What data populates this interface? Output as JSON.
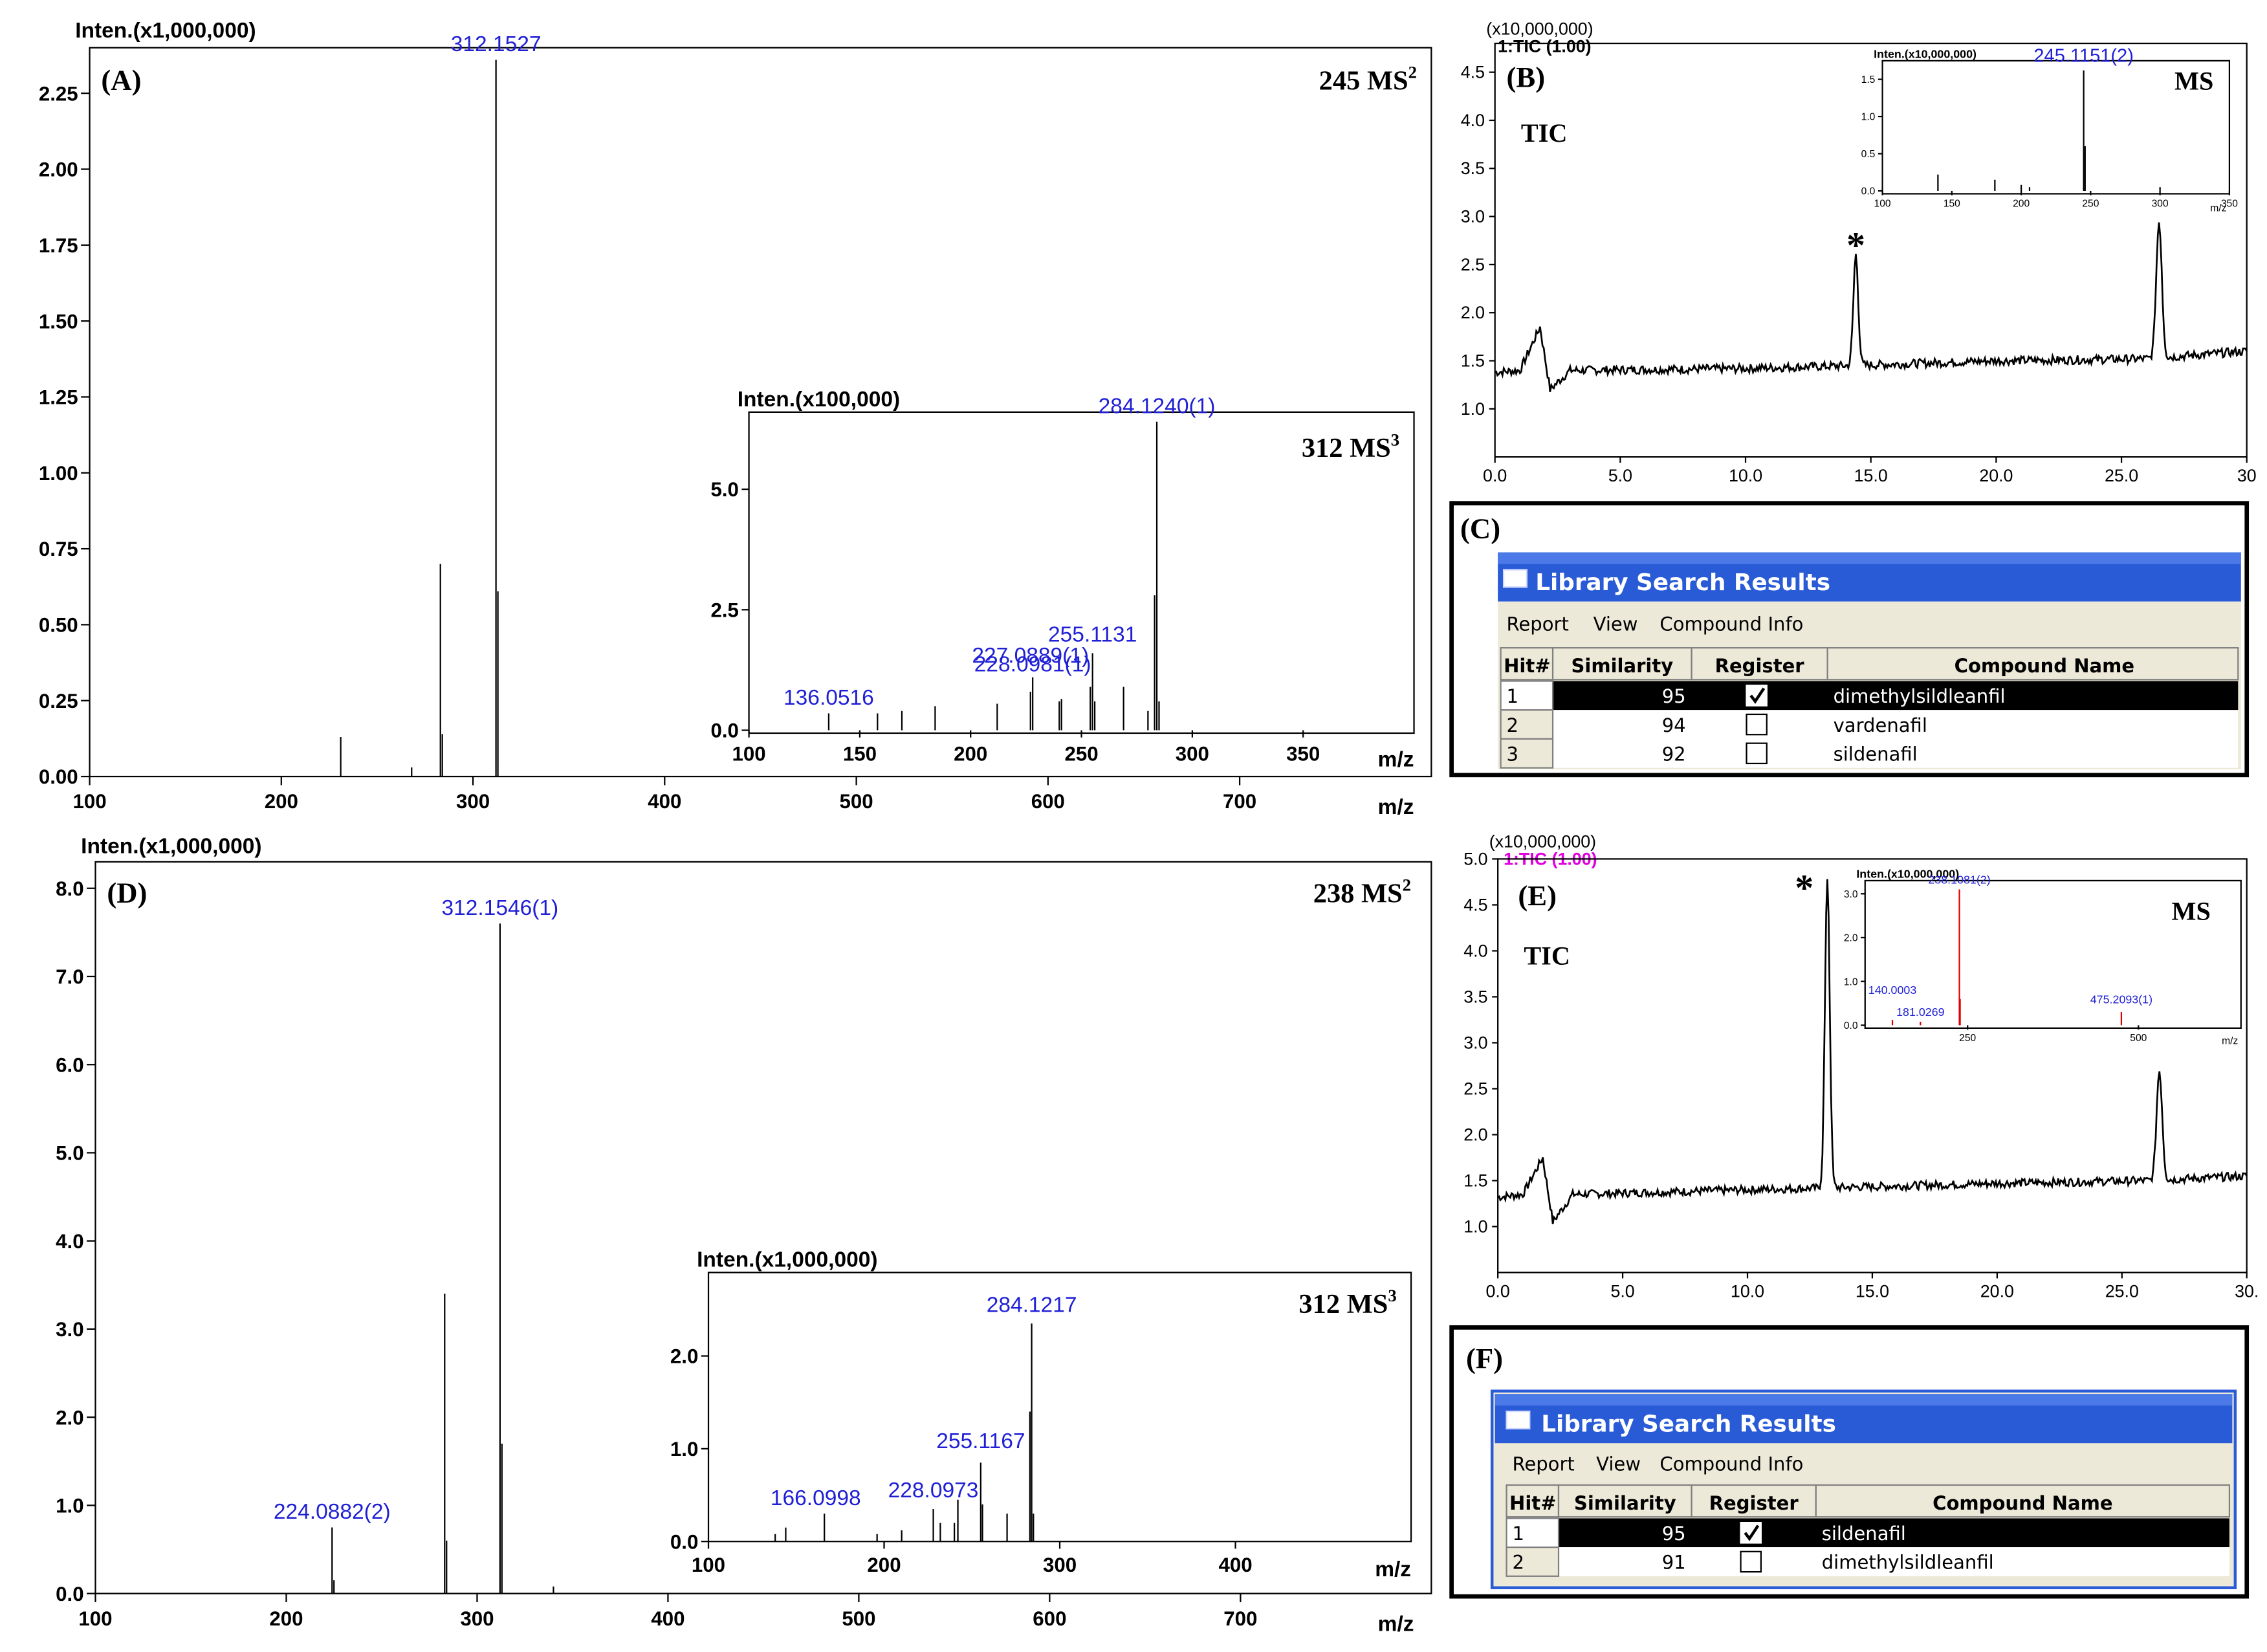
{
  "chart_data": [
    {
      "id": "A",
      "type": "bar",
      "panel_label": "(A)",
      "title_prefix": "245 MS",
      "title_sup": "2",
      "ylabel": "Inten.(x1,000,000)",
      "xlabel": "m/z",
      "xlim": [
        100,
        800
      ],
      "ylim": [
        0,
        2.4
      ],
      "x_ticks": [
        100,
        200,
        300,
        400,
        500,
        600,
        700
      ],
      "y_ticks": [
        "0.00",
        "0.25",
        "0.50",
        "0.75",
        "1.00",
        "1.25",
        "1.50",
        "1.75",
        "2.00",
        "2.25"
      ],
      "peaks": [
        [
          231,
          0.13
        ],
        [
          268,
          0.03
        ],
        [
          283,
          0.7
        ],
        [
          284,
          0.14
        ],
        [
          312,
          2.36
        ],
        [
          313,
          0.61
        ]
      ],
      "annotations": [
        {
          "x": 312,
          "y": 2.36,
          "text": "312.1527"
        }
      ]
    },
    {
      "id": "A-inset",
      "type": "bar",
      "title_prefix": "312 MS",
      "title_sup": "3",
      "ylabel": "Inten.(x100,000)",
      "xlabel": "m/z",
      "xlim": [
        100,
        400
      ],
      "ylim": [
        0,
        6.6
      ],
      "x_ticks": [
        100,
        150,
        200,
        250,
        300,
        350
      ],
      "y_ticks": [
        "0.0",
        "2.5",
        "5.0"
      ],
      "peaks": [
        [
          136,
          0.35
        ],
        [
          158,
          0.35
        ],
        [
          169,
          0.4
        ],
        [
          184,
          0.5
        ],
        [
          212,
          0.55
        ],
        [
          227,
          0.8
        ],
        [
          228,
          1.1
        ],
        [
          240,
          0.6
        ],
        [
          241,
          0.65
        ],
        [
          254,
          0.9
        ],
        [
          255,
          1.6
        ],
        [
          256,
          0.6
        ],
        [
          269,
          0.9
        ],
        [
          280,
          0.4
        ],
        [
          283,
          2.8
        ],
        [
          284,
          6.4
        ],
        [
          285,
          0.6
        ]
      ],
      "annotations": [
        {
          "x": 136,
          "y": 0.35,
          "text": "136.0516"
        },
        {
          "x": 227,
          "y": 0.8,
          "text": "227.0889(1)"
        },
        {
          "x": 228,
          "y": 1.1,
          "text": "228.0981(1)"
        },
        {
          "x": 255,
          "y": 1.6,
          "text": "255.1131"
        },
        {
          "x": 284,
          "y": 6.4,
          "text": "284.1240(1)"
        }
      ]
    },
    {
      "id": "B",
      "type": "line",
      "panel_label": "(B)",
      "series_label": "TIC",
      "ylabel": "(x10,000,000)",
      "header": "1:TIC (1.00)",
      "xlim": [
        0,
        30
      ],
      "ylim": [
        0.5,
        4.8
      ],
      "x_ticks": [
        "0.0",
        "5.0",
        "10.0",
        "15.0",
        "20.0",
        "25.0",
        "30"
      ],
      "y_ticks": [
        "1.0",
        "1.5",
        "2.0",
        "2.5",
        "3.0",
        "3.5",
        "4.0",
        "4.5"
      ],
      "baseline": [
        [
          0,
          1.38
        ],
        [
          1,
          1.4
        ],
        [
          1.8,
          1.85
        ],
        [
          2.2,
          1.2
        ],
        [
          3,
          1.4
        ],
        [
          10,
          1.42
        ],
        [
          14.3,
          1.45
        ],
        [
          20,
          1.5
        ],
        [
          26,
          1.52
        ],
        [
          30,
          1.6
        ]
      ],
      "peaks": [
        {
          "center": 14.4,
          "height": 2.6,
          "width": 0.3
        },
        {
          "center": 26.5,
          "height": 2.95,
          "width": 0.35
        }
      ],
      "marker": {
        "x": 14.4,
        "text": "*"
      }
    },
    {
      "id": "B-inset",
      "type": "bar",
      "series_label": "MS",
      "ylabel": "Inten.(x10,000,000)",
      "xlabel": "m/z",
      "xlim": [
        100,
        350
      ],
      "ylim": [
        0,
        1.75
      ],
      "x_ticks": [
        100,
        150,
        200,
        250,
        300,
        350
      ],
      "y_ticks": [
        "0.0",
        "0.5",
        "1.0",
        "1.5"
      ],
      "peaks": [
        [
          140,
          0.22
        ],
        [
          181,
          0.15
        ],
        [
          200,
          0.08
        ],
        [
          206,
          0.05
        ],
        [
          245,
          1.62
        ],
        [
          246,
          0.6
        ],
        [
          300,
          0.05
        ]
      ],
      "annotations": [
        {
          "x": 245,
          "y": 1.62,
          "text": "245.1151(2)"
        }
      ]
    },
    {
      "id": "D",
      "type": "bar",
      "panel_label": "(D)",
      "title_prefix": "238 MS",
      "title_sup": "2",
      "ylabel": "Inten.(x1,000,000)",
      "xlabel": "m/z",
      "xlim": [
        100,
        800
      ],
      "ylim": [
        0,
        8.3
      ],
      "x_ticks": [
        100,
        200,
        300,
        400,
        500,
        600,
        700
      ],
      "y_ticks": [
        "0.0",
        "1.0",
        "2.0",
        "3.0",
        "4.0",
        "5.0",
        "6.0",
        "7.0",
        "8.0"
      ],
      "peaks": [
        [
          224,
          0.75
        ],
        [
          225,
          0.15
        ],
        [
          283,
          3.4
        ],
        [
          284,
          0.6
        ],
        [
          312,
          7.6
        ],
        [
          313,
          1.7
        ],
        [
          340,
          0.08
        ]
      ],
      "annotations": [
        {
          "x": 224,
          "y": 0.75,
          "text": "224.0882(2)"
        },
        {
          "x": 312,
          "y": 7.6,
          "text": "312.1546(1)"
        }
      ]
    },
    {
      "id": "D-inset",
      "type": "bar",
      "title_prefix": "312 MS",
      "title_sup": "3",
      "ylabel": "Inten.(x1,000,000)",
      "xlabel": "m/z",
      "xlim": [
        100,
        500
      ],
      "ylim": [
        0,
        2.9
      ],
      "x_ticks": [
        100,
        200,
        300,
        400
      ],
      "y_ticks": [
        "0.0",
        "1.0",
        "2.0"
      ],
      "peaks": [
        [
          138,
          0.08
        ],
        [
          144,
          0.15
        ],
        [
          166,
          0.3
        ],
        [
          196,
          0.08
        ],
        [
          210,
          0.12
        ],
        [
          228,
          0.35
        ],
        [
          232,
          0.2
        ],
        [
          240,
          0.2
        ],
        [
          242,
          0.45
        ],
        [
          255,
          0.85
        ],
        [
          256,
          0.4
        ],
        [
          270,
          0.3
        ],
        [
          283,
          1.4
        ],
        [
          284,
          2.35
        ],
        [
          285,
          0.3
        ]
      ],
      "annotations": [
        {
          "x": 166,
          "y": 0.3,
          "text": "166.0998"
        },
        {
          "x": 228,
          "y": 0.35,
          "text": "228.0973"
        },
        {
          "x": 255,
          "y": 0.85,
          "text": "255.1167"
        },
        {
          "x": 284,
          "y": 2.35,
          "text": "284.1217"
        }
      ]
    },
    {
      "id": "E",
      "type": "line",
      "panel_label": "(E)",
      "series_label": "TIC",
      "ylabel": "(x10,000,000)",
      "header": "1:TIC (1.00)",
      "xlim": [
        0,
        30
      ],
      "ylim": [
        0.5,
        5.0
      ],
      "x_ticks": [
        "0.0",
        "5.0",
        "10.0",
        "15.0",
        "20.0",
        "25.0",
        "30."
      ],
      "y_ticks": [
        "1.0",
        "1.5",
        "2.0",
        "2.5",
        "3.0",
        "3.5",
        "4.0",
        "4.5",
        "5.0"
      ],
      "baseline": [
        [
          0,
          1.32
        ],
        [
          1,
          1.35
        ],
        [
          1.8,
          1.75
        ],
        [
          2.2,
          1.05
        ],
        [
          3,
          1.35
        ],
        [
          10,
          1.4
        ],
        [
          13,
          1.42
        ],
        [
          20,
          1.47
        ],
        [
          26,
          1.5
        ],
        [
          30,
          1.55
        ]
      ],
      "peaks": [
        {
          "center": 13.2,
          "height": 4.8,
          "width": 0.3
        },
        {
          "center": 26.5,
          "height": 2.7,
          "width": 0.35
        }
      ],
      "marker": {
        "x": 13.2,
        "text": "*"
      }
    },
    {
      "id": "E-inset",
      "type": "bar",
      "series_label": "MS",
      "ylabel": "Inten.(x10,000,000)",
      "xlabel": "m/z",
      "xlim": [
        100,
        650
      ],
      "ylim": [
        0,
        3.3
      ],
      "x_ticks": [
        250,
        500
      ],
      "y_ticks": [
        "0.0",
        "1.0",
        "2.0",
        "3.0"
      ],
      "peaks": [
        [
          140,
          0.12
        ],
        [
          181,
          0.08
        ],
        [
          238,
          3.1
        ],
        [
          239,
          0.6
        ],
        [
          475,
          0.3
        ]
      ],
      "annotations": [
        {
          "x": 140,
          "y": 0.12,
          "text": "140.0003"
        },
        {
          "x": 181,
          "y": 0.08,
          "text": "181.0269"
        },
        {
          "x": 238,
          "y": 3.1,
          "text": "238.1081(2)"
        },
        {
          "x": 475,
          "y": 0.3,
          "text": "475.2093(1)"
        }
      ]
    },
    {
      "id": "C",
      "type": "table",
      "panel_label": "(C)",
      "window_title": "Library Search Results",
      "menu": [
        "Report",
        "View",
        "Compound Info"
      ],
      "columns": [
        "Hit#",
        "Similarity",
        "Register",
        "Compound Name"
      ],
      "rows": [
        {
          "hit": "1",
          "similarity": "95",
          "register": true,
          "name": "dimethylsildleanfil",
          "selected": true
        },
        {
          "hit": "2",
          "similarity": "94",
          "register": false,
          "name": "vardenafil",
          "selected": false
        },
        {
          "hit": "3",
          "similarity": "92",
          "register": false,
          "name": "sildenafil",
          "selected": false
        }
      ]
    },
    {
      "id": "F",
      "type": "table",
      "panel_label": "(F)",
      "window_title": "Library Search Results",
      "menu": [
        "Report",
        "View",
        "Compound Info"
      ],
      "columns": [
        "Hit#",
        "Similarity",
        "Register",
        "Compound Name"
      ],
      "rows": [
        {
          "hit": "1",
          "similarity": "95",
          "register": true,
          "name": "sildenafil",
          "selected": true
        },
        {
          "hit": "2",
          "similarity": "91",
          "register": false,
          "name": "dimethylsildleanfil",
          "selected": false
        }
      ]
    }
  ]
}
